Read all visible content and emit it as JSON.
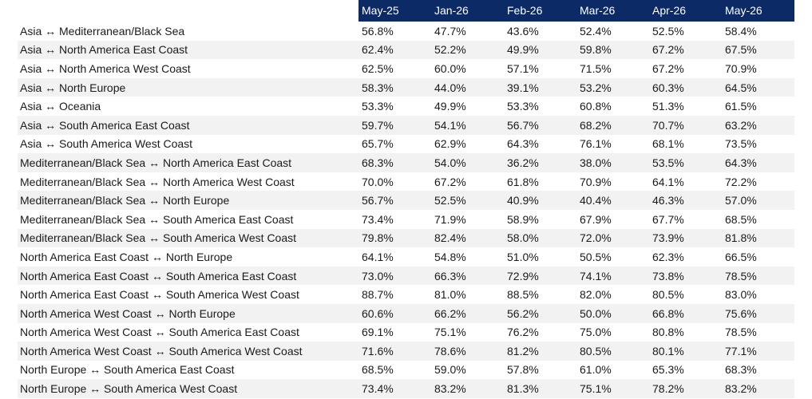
{
  "chart_data": {
    "type": "table",
    "columns": [
      "May-25",
      "Jan-26",
      "Feb-26",
      "Mar-26",
      "Apr-26",
      "May-26"
    ],
    "rows": [
      {
        "route": "Asia ↔  Mediterranean/Black Sea",
        "values": [
          "56.8%",
          "47.7%",
          "43.6%",
          "52.4%",
          "52.5%",
          "58.4%"
        ]
      },
      {
        "route": "Asia ↔  North America East Coast",
        "values": [
          "62.4%",
          "52.2%",
          "49.9%",
          "59.8%",
          "67.2%",
          "67.5%"
        ]
      },
      {
        "route": "Asia ↔  North America West Coast",
        "values": [
          "62.5%",
          "60.0%",
          "57.1%",
          "71.5%",
          "67.2%",
          "70.9%"
        ]
      },
      {
        "route": "Asia ↔  North Europe",
        "values": [
          "58.3%",
          "44.0%",
          "39.1%",
          "53.2%",
          "60.3%",
          "64.5%"
        ]
      },
      {
        "route": "Asia ↔  Oceania",
        "values": [
          "53.3%",
          "49.9%",
          "53.3%",
          "60.8%",
          "51.3%",
          "61.5%"
        ]
      },
      {
        "route": "Asia ↔  South America East Coast",
        "values": [
          "59.7%",
          "54.1%",
          "56.7%",
          "68.2%",
          "70.7%",
          "63.2%"
        ]
      },
      {
        "route": "Asia ↔  South America West Coast",
        "values": [
          "65.7%",
          "62.9%",
          "64.3%",
          "76.1%",
          "68.1%",
          "73.5%"
        ]
      },
      {
        "route": "Mediterranean/Black Sea ↔  North America East Coast",
        "values": [
          "68.3%",
          "54.0%",
          "36.2%",
          "38.0%",
          "53.5%",
          "64.3%"
        ]
      },
      {
        "route": "Mediterranean/Black Sea ↔  North America West Coast",
        "values": [
          "70.0%",
          "67.2%",
          "61.8%",
          "70.9%",
          "64.1%",
          "72.2%"
        ]
      },
      {
        "route": "Mediterranean/Black Sea ↔ North Europe",
        "values": [
          "56.7%",
          "52.5%",
          "40.9%",
          "40.4%",
          "46.3%",
          "57.0%"
        ]
      },
      {
        "route": "Mediterranean/Black Sea ↔  South America East Coast",
        "values": [
          "73.4%",
          "71.9%",
          "58.9%",
          "67.9%",
          "67.7%",
          "68.5%"
        ]
      },
      {
        "route": "Mediterranean/Black Sea ↔  South America West Coast",
        "values": [
          "79.8%",
          "82.4%",
          "58.0%",
          "72.0%",
          "73.9%",
          "81.8%"
        ]
      },
      {
        "route": "North America East Coast ↔  North Europe",
        "values": [
          "64.1%",
          "54.8%",
          "51.0%",
          "50.5%",
          "62.3%",
          "66.5%"
        ]
      },
      {
        "route": "North America East Coast ↔  South America East Coast",
        "values": [
          "73.0%",
          "66.3%",
          "72.9%",
          "74.1%",
          "73.8%",
          "78.5%"
        ]
      },
      {
        "route": "North America East Coast ↔  South America West Coast",
        "values": [
          "88.7%",
          "81.0%",
          "88.5%",
          "82.0%",
          "80.5%",
          "83.0%"
        ]
      },
      {
        "route": "North America West Coast ↔  North Europe",
        "values": [
          "60.6%",
          "66.2%",
          "56.2%",
          "50.0%",
          "66.8%",
          "75.6%"
        ]
      },
      {
        "route": "North America West Coast ↔ South America East Coast",
        "values": [
          "69.1%",
          "75.1%",
          "76.2%",
          "75.0%",
          "80.8%",
          "78.5%"
        ]
      },
      {
        "route": "North America West Coast ↔ South America West Coast",
        "values": [
          "71.6%",
          "78.6%",
          "81.2%",
          "80.5%",
          "80.1%",
          "77.1%"
        ]
      },
      {
        "route": "North Europe ↔  South America East Coast",
        "values": [
          "68.5%",
          "59.0%",
          "57.8%",
          "61.0%",
          "65.3%",
          "68.3%"
        ]
      },
      {
        "route": "North Europe ↔  South America West Coast",
        "values": [
          "73.4%",
          "83.2%",
          "81.3%",
          "75.1%",
          "78.2%",
          "83.2%"
        ]
      }
    ],
    "colors": {
      "header_bg": "#0b2a66",
      "header_text": "#ffffff",
      "stripe": "#f2f2f2"
    }
  }
}
